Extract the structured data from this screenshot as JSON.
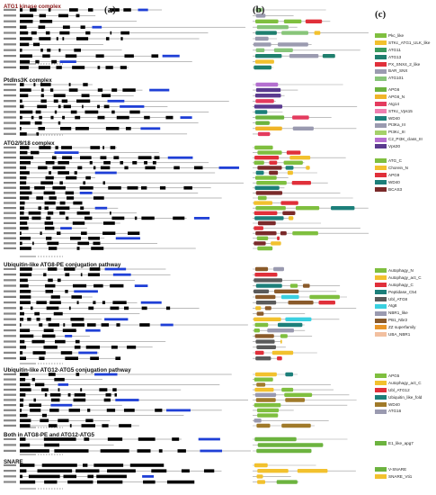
{
  "panels": {
    "a": "(a)",
    "b": "(b)",
    "c": "(c)"
  },
  "sections": [
    {
      "id": "atg1",
      "title": "ATG1 kinase complex",
      "red": true
    },
    {
      "id": "pi3k",
      "title": "PtdIns3K complex"
    },
    {
      "id": "atg2",
      "title": "ATG2/9/18 complex"
    },
    {
      "id": "atg8",
      "title": "Ubiquitin-like ATG8-PE conjugation pathway"
    },
    {
      "id": "atg12",
      "title": "Ubiquitin-like ATG12-ATG5 conjugation pathway"
    },
    {
      "id": "both",
      "title": "Both in ATG8-PE and ATG12-ATG5"
    },
    {
      "id": "snare",
      "title": "SNARE"
    }
  ],
  "legends": [
    {
      "section": "atg1",
      "items": [
        {
          "label": "Pkc_like",
          "color": "#7fbf3f"
        },
        {
          "label": "STKc_ATG1_ULK_like",
          "color": "#f2c12e"
        },
        {
          "label": "ATG11",
          "color": "#3b9b5e"
        },
        {
          "label": "ATG13",
          "color": "#1f7f6e"
        },
        {
          "label": "PX_SNX4_2_like",
          "color": "#e0303a"
        },
        {
          "label": "BAR_SNX",
          "color": "#9b9bb0"
        },
        {
          "label": "ATG101",
          "color": "#88c57a"
        }
      ]
    },
    {
      "section": "pi3k",
      "items": [
        {
          "label": "APG6",
          "color": "#6cb33f"
        },
        {
          "label": "APG6_N",
          "color": "#f0b429"
        },
        {
          "label": "Atg14",
          "color": "#e43b5e"
        },
        {
          "label": "STKc_Vps15",
          "color": "#ef7fb0"
        },
        {
          "label": "WD40",
          "color": "#1c7f7a"
        },
        {
          "label": "PI3Ka_III",
          "color": "#9a9ab0"
        },
        {
          "label": "PI3Kc_III",
          "color": "#a5d16a"
        },
        {
          "label": "C2_PI3K_class_III",
          "color": "#b46fd0"
        },
        {
          "label": "Vps30",
          "color": "#5b3a8f"
        }
      ]
    },
    {
      "section": "atg2",
      "items": [
        {
          "label": "ATG_C",
          "color": "#7fbf3f"
        },
        {
          "label": "Chorein_N",
          "color": "#f2c12e"
        },
        {
          "label": "APG9",
          "color": "#e0303a"
        },
        {
          "label": "WD40",
          "color": "#1c7f7a"
        },
        {
          "label": "BCAS3",
          "color": "#7a2a2a"
        }
      ]
    },
    {
      "section": "atg8",
      "items": [
        {
          "label": "Autophagy_N",
          "color": "#7fbf3f"
        },
        {
          "label": "Autophagy_act_C",
          "color": "#f2c12e"
        },
        {
          "label": "Autophagy_C",
          "color": "#e0303a"
        },
        {
          "label": "Peptidase_C54",
          "color": "#1c7f7a"
        },
        {
          "label": "Ubl_ATG8",
          "color": "#5a5a5a"
        },
        {
          "label": "Atg8",
          "color": "#3ad0e0"
        },
        {
          "label": "NBR1_like",
          "color": "#9a9ab0"
        },
        {
          "label": "PB1_Nbr2",
          "color": "#8a5a2a"
        },
        {
          "label": "ZZ superfamily",
          "color": "#e8962a"
        },
        {
          "label": "UBA_NBR1",
          "color": "#f2c0a0"
        }
      ]
    },
    {
      "section": "atg12",
      "items": [
        {
          "label": "APG5",
          "color": "#7fbf3f"
        },
        {
          "label": "Autophagy_act_C",
          "color": "#f2c12e"
        },
        {
          "label": "Ubl_ATG12",
          "color": "#e0303a"
        },
        {
          "label": "Ubiquitin_like_fold",
          "color": "#1c7f7a"
        },
        {
          "label": "WD40",
          "color": "#a07a2a"
        },
        {
          "label": "ATG16",
          "color": "#9a9ab0"
        }
      ]
    },
    {
      "section": "both",
      "items": [
        {
          "label": "E1_like_apg7",
          "color": "#6cb33f"
        }
      ]
    },
    {
      "section": "snare",
      "items": [
        {
          "label": "V-SNARE",
          "color": "#6cb33f"
        },
        {
          "label": "SNARE_Vti1",
          "color": "#f2c12e"
        }
      ]
    }
  ]
}
